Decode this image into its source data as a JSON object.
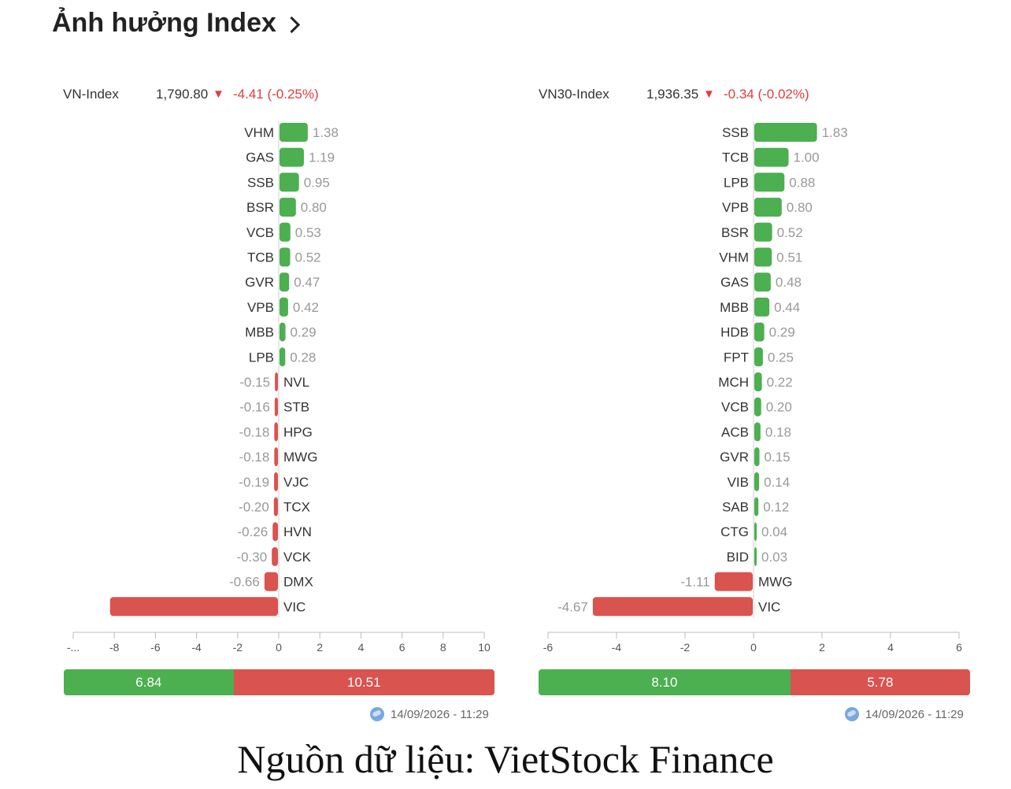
{
  "title": "Ảnh hưởng Index",
  "colors": {
    "positive": "#4caf50",
    "negative": "#d9534f"
  },
  "panels": [
    {
      "index_name": "VN-Index",
      "index_value": "1,790.80",
      "change": "-4.41 (-0.25%)",
      "arrow": "▼",
      "timestamp": "14/09/2026 - 11:29"
    },
    {
      "index_name": "VN30-Index",
      "index_value": "1,936.35",
      "change": "-0.34 (-0.02%)",
      "arrow": "▼",
      "timestamp": "14/09/2026 - 11:29"
    }
  ],
  "chart_data": [
    {
      "type": "bar",
      "orientation": "horizontal",
      "categories": [
        "VHM",
        "GAS",
        "SSB",
        "BSR",
        "VCB",
        "TCB",
        "GVR",
        "VPB",
        "MBB",
        "LPB",
        "NVL",
        "STB",
        "HPG",
        "MWG",
        "VJC",
        "TCX",
        "HVN",
        "VCK",
        "DMX",
        "VIC"
      ],
      "values": [
        1.38,
        1.19,
        0.95,
        0.8,
        0.53,
        0.52,
        0.47,
        0.42,
        0.29,
        0.28,
        -0.15,
        -0.16,
        -0.18,
        -0.18,
        -0.19,
        -0.2,
        -0.26,
        -0.3,
        -0.66,
        -8.2
      ],
      "value_labels": [
        "1.38",
        "1.19",
        "0.95",
        "0.80",
        "0.53",
        "0.52",
        "0.47",
        "0.42",
        "0.29",
        "0.28",
        "-0.15",
        "-0.16",
        "-0.18",
        "-0.18",
        "-0.19",
        "-0.20",
        "-0.26",
        "-0.30",
        "-0.66",
        ""
      ],
      "xlim": [
        -10,
        10
      ],
      "xticks": [
        "-...",
        "-8",
        "-6",
        "-4",
        "-2",
        "0",
        "2",
        "4",
        "6",
        "8",
        "10"
      ],
      "breadth": {
        "positive": 6.84,
        "negative": 10.51
      }
    },
    {
      "type": "bar",
      "orientation": "horizontal",
      "categories": [
        "SSB",
        "TCB",
        "LPB",
        "VPB",
        "BSR",
        "VHM",
        "GAS",
        "MBB",
        "HDB",
        "FPT",
        "MCH",
        "VCB",
        "ACB",
        "GVR",
        "VIB",
        "SAB",
        "CTG",
        "BID",
        "MWG",
        "VIC"
      ],
      "values": [
        1.83,
        1.0,
        0.88,
        0.8,
        0.52,
        0.51,
        0.48,
        0.44,
        0.29,
        0.25,
        0.22,
        0.2,
        0.18,
        0.15,
        0.14,
        0.12,
        0.04,
        0.03,
        -1.11,
        -4.67
      ],
      "value_labels": [
        "1.83",
        "1.00",
        "0.88",
        "0.80",
        "0.52",
        "0.51",
        "0.48",
        "0.44",
        "0.29",
        "0.25",
        "0.22",
        "0.20",
        "0.18",
        "0.15",
        "0.14",
        "0.12",
        "0.04",
        "0.03",
        "-1.11",
        "-4.67"
      ],
      "xlim": [
        -6,
        6
      ],
      "xticks": [
        "-6",
        "-4",
        "-2",
        "0",
        "2",
        "4",
        "6"
      ],
      "breadth": {
        "positive": 8.1,
        "negative": 5.78
      }
    }
  ],
  "source": "Nguồn dữ liệu: VietStock Finance"
}
